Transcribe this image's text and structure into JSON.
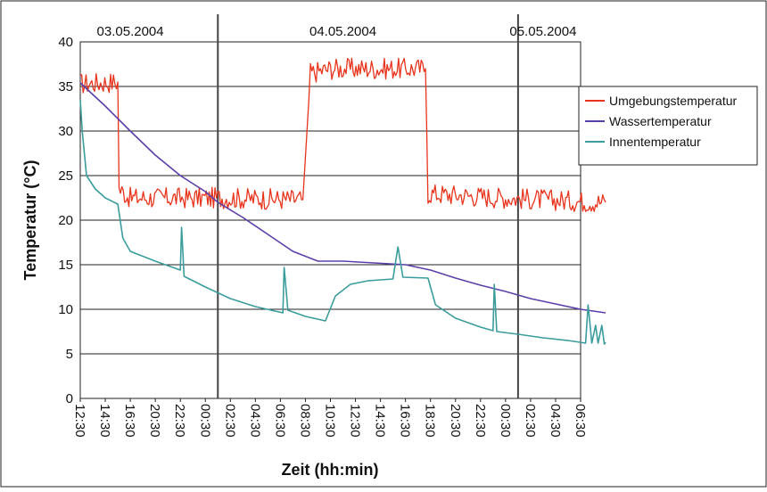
{
  "chart_data": {
    "type": "line",
    "title": "",
    "xlabel": "Zeit (hh:min)",
    "ylabel": "Temperatur (°C)",
    "ylim": [
      0,
      40
    ],
    "yticks": [
      0,
      5,
      10,
      15,
      20,
      25,
      30,
      35,
      40
    ],
    "x_tick_labels": [
      "12:30",
      "14:30",
      "16:30",
      "20:30",
      "22:30",
      "00:30",
      "02:30",
      "04:30",
      "06:30",
      "08:30",
      "10:30",
      "12:30",
      "14:30",
      "16:30",
      "18:30",
      "20:30",
      "22:30",
      "00:30",
      "02:30",
      "04:30",
      "06:30"
    ],
    "date_labels": [
      {
        "label": "03.05.2004",
        "at_tick": 2
      },
      {
        "label": "04.05.2004",
        "at_tick": 10.5
      },
      {
        "label": "05.05.2004",
        "at_tick": 18.5
      }
    ],
    "day_separators_at_tick": [
      5.5,
      17.5
    ],
    "grid": {
      "horizontal": true
    },
    "legend_position": "right",
    "series": [
      {
        "name": "Umgebungstemperatur",
        "color": "#e8341c",
        "noise": 1.2,
        "points": [
          [
            0,
            35.3
          ],
          [
            1.5,
            35.5
          ],
          [
            1.55,
            23.5
          ],
          [
            2,
            22.5
          ],
          [
            5.5,
            22.5
          ],
          [
            8.9,
            22.3
          ],
          [
            9.2,
            36.5
          ],
          [
            10,
            37
          ],
          [
            13.8,
            37
          ],
          [
            13.9,
            23
          ],
          [
            17,
            22.5
          ],
          [
            21,
            22
          ]
        ]
      },
      {
        "name": "Wassertemperatur",
        "color": "#5b3fa8",
        "noise": 0,
        "points": [
          [
            0,
            35.4
          ],
          [
            1,
            32.8
          ],
          [
            2,
            30
          ],
          [
            3,
            27.3
          ],
          [
            4,
            25
          ],
          [
            5,
            23.2
          ],
          [
            5.5,
            22
          ],
          [
            6.5,
            20.3
          ],
          [
            7.5,
            18.4
          ],
          [
            8.5,
            16.5
          ],
          [
            9.5,
            15.4
          ],
          [
            10.5,
            15.4
          ],
          [
            13,
            15
          ],
          [
            14,
            14.4
          ],
          [
            15,
            13.5
          ],
          [
            16,
            12.7
          ],
          [
            17,
            12
          ],
          [
            18,
            11.2
          ],
          [
            19,
            10.6
          ],
          [
            20,
            10
          ],
          [
            21,
            9.6
          ]
        ]
      },
      {
        "name": "Innentemperatur",
        "color": "#3b9c9c",
        "noise": 0,
        "points": [
          [
            0,
            33.5
          ],
          [
            0.08,
            30
          ],
          [
            0.25,
            25
          ],
          [
            0.6,
            23.5
          ],
          [
            1,
            22.5
          ],
          [
            1.5,
            21.8
          ],
          [
            1.7,
            18
          ],
          [
            2,
            16.5
          ],
          [
            3,
            15.4
          ],
          [
            4,
            14.4
          ],
          [
            4.05,
            19.2
          ],
          [
            4.15,
            13.7
          ],
          [
            5,
            12.5
          ],
          [
            6,
            11.2
          ],
          [
            7,
            10.3
          ],
          [
            8.1,
            9.6
          ],
          [
            8.15,
            14.7
          ],
          [
            8.3,
            9.9
          ],
          [
            9,
            9.2
          ],
          [
            9.8,
            8.7
          ],
          [
            10.2,
            11.5
          ],
          [
            10.8,
            12.8
          ],
          [
            11.5,
            13.2
          ],
          [
            12.5,
            13.4
          ],
          [
            12.7,
            17
          ],
          [
            12.9,
            13.6
          ],
          [
            13.9,
            13.5
          ],
          [
            14.2,
            10.5
          ],
          [
            15,
            9
          ],
          [
            16,
            8
          ],
          [
            16.5,
            7.6
          ],
          [
            16.55,
            12.8
          ],
          [
            16.65,
            7.5
          ],
          [
            17.5,
            7.2
          ],
          [
            18.5,
            6.8
          ],
          [
            19.5,
            6.5
          ],
          [
            20.2,
            6.2
          ],
          [
            20.3,
            10.5
          ],
          [
            20.45,
            6.2
          ],
          [
            20.6,
            8.2
          ],
          [
            20.7,
            6.2
          ],
          [
            20.85,
            8.2
          ],
          [
            20.95,
            6.1
          ],
          [
            21,
            6.3
          ]
        ]
      }
    ]
  }
}
